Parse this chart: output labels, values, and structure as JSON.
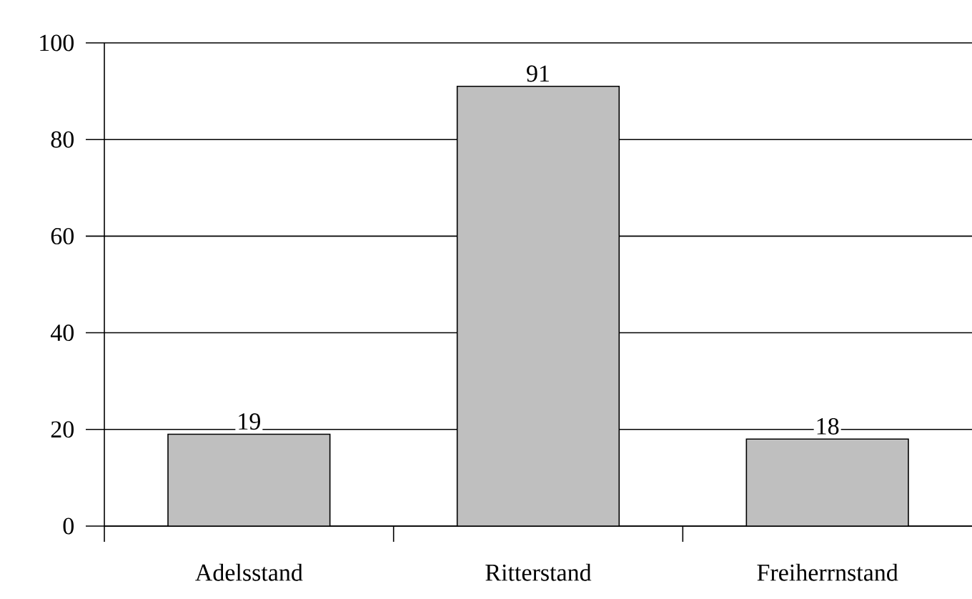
{
  "chart_data": {
    "type": "bar",
    "categories": [
      "Adelsstand",
      "Ritterstand",
      "Freiherrnstand"
    ],
    "values": [
      19,
      91,
      18
    ],
    "color": "#bfbfbf",
    "ylim": [
      0,
      100
    ],
    "yticks": [
      0,
      20,
      40,
      60,
      80,
      100
    ],
    "grid": "y",
    "data_labels": true
  }
}
